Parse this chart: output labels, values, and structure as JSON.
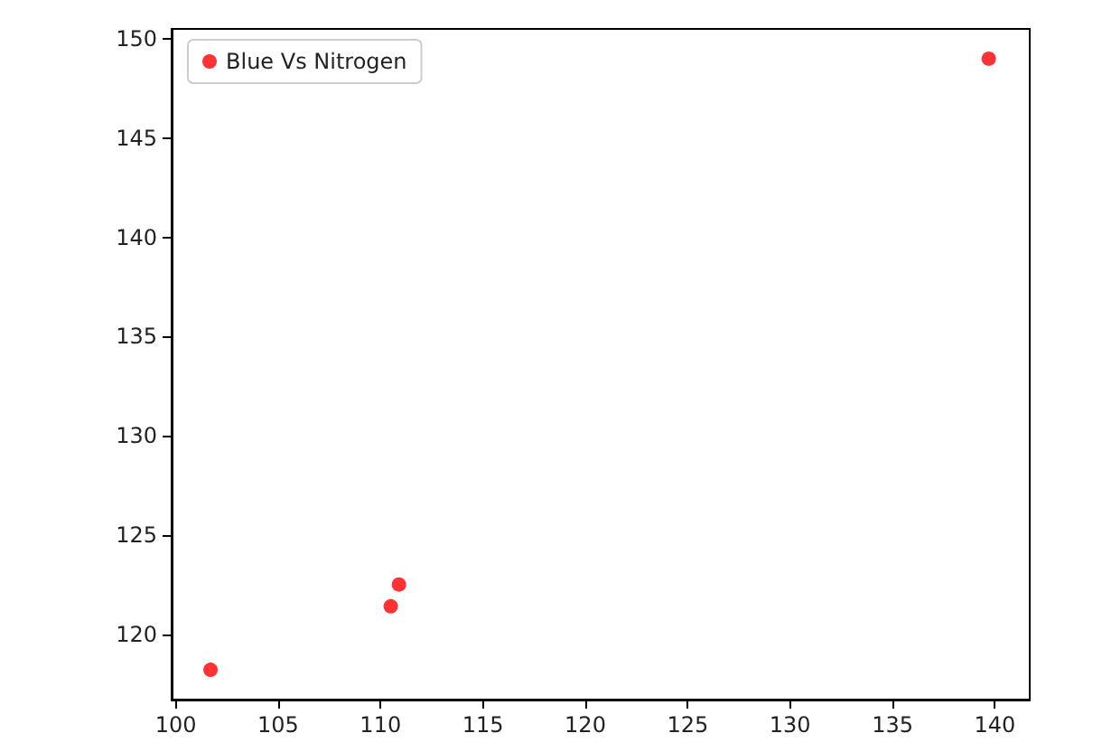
{
  "chart_data": {
    "type": "scatter",
    "x": [
      101.7,
      110.5,
      110.9,
      139.7
    ],
    "series": [
      {
        "name": "Blue Vs Nitrogen",
        "color": "#ff0000",
        "values": [
          118.2,
          121.4,
          122.5,
          149.0
        ]
      }
    ],
    "xlim": [
      99.8,
      141.7
    ],
    "xticks": [
      100,
      105,
      110,
      115,
      120,
      125,
      130,
      135,
      140
    ],
    "ylim": [
      116.7,
      150.5
    ],
    "yticks": [
      120,
      125,
      130,
      135,
      140,
      145,
      150
    ],
    "legend": "top left",
    "grid": false,
    "marker": "circle"
  }
}
